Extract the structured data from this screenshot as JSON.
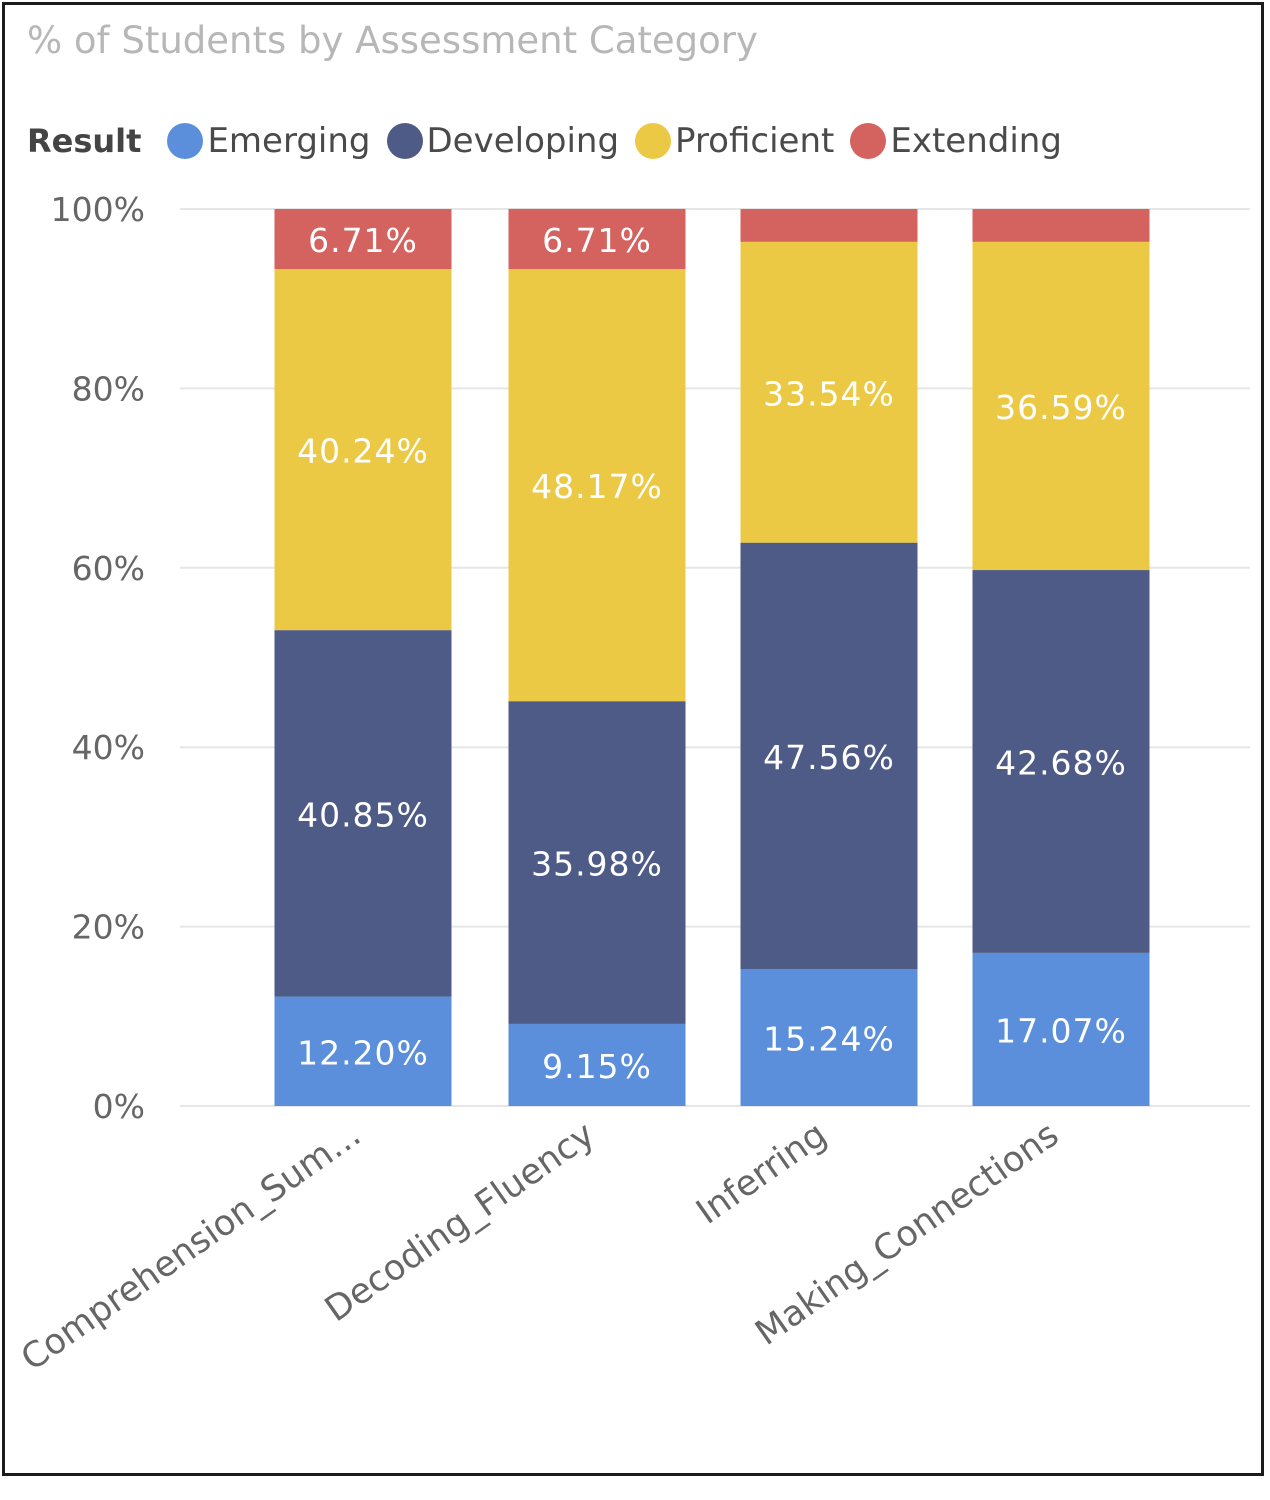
{
  "chart_data": {
    "type": "bar",
    "stacked": true,
    "percent_stacked": true,
    "title": "% of Students by Assessment Category",
    "legend_title": "Result",
    "legend_position": "top-left",
    "categories": [
      "Comprehension_Sum...",
      "Decoding_Fluency",
      "Inferring",
      "Making_Connections"
    ],
    "series": [
      {
        "name": "Emerging",
        "color": "#5b8fdb",
        "values": [
          12.2,
          9.15,
          15.24,
          17.07
        ],
        "labels": [
          "12.20%",
          "9.15%",
          "15.24%",
          "17.07%"
        ]
      },
      {
        "name": "Developing",
        "color": "#4e5b86",
        "values": [
          40.85,
          35.98,
          47.56,
          42.68
        ],
        "labels": [
          "40.85%",
          "35.98%",
          "47.56%",
          "42.68%"
        ]
      },
      {
        "name": "Proficient",
        "color": "#ecc944",
        "values": [
          40.24,
          48.17,
          33.54,
          36.59
        ],
        "labels": [
          "40.24%",
          "48.17%",
          "33.54%",
          "36.59%"
        ]
      },
      {
        "name": "Extending",
        "color": "#d4625f",
        "values": [
          6.71,
          6.71,
          3.66,
          3.66
        ],
        "labels": [
          "6.71%",
          "6.71%",
          "",
          ""
        ]
      }
    ],
    "ylim": [
      0,
      100
    ],
    "yticks": [
      0,
      20,
      40,
      60,
      80,
      100
    ],
    "ytick_labels": [
      "0%",
      "20%",
      "40%",
      "60%",
      "80%",
      "100%"
    ],
    "grid": true
  }
}
